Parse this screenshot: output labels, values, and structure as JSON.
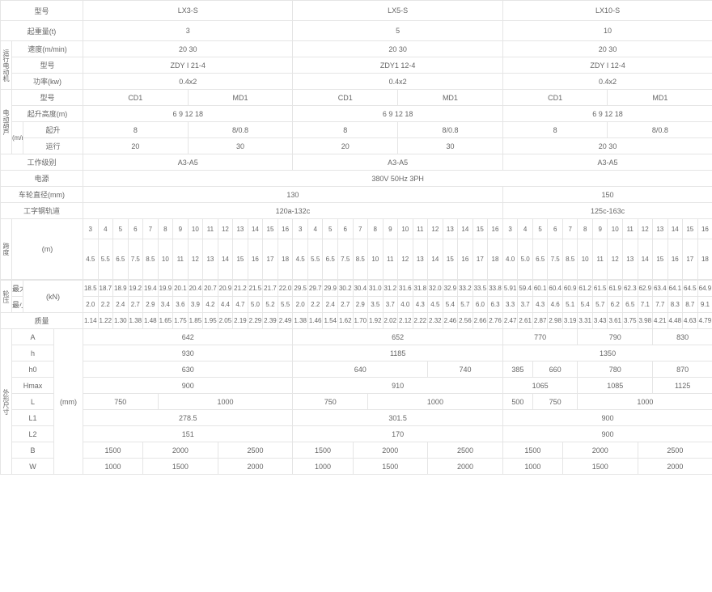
{
  "labels": {
    "model": "型号",
    "capacity": "起重量(t)",
    "speed": "速度(m/min)",
    "power": "功率(kw)",
    "liftHeight": "起升高度(m)",
    "lift": "起升",
    "travel": "运行",
    "workClass": "工作级别",
    "powerSupply": "电源",
    "wheelDia": "车轮直径(mm)",
    "ibeam": "工字钢轨道",
    "max": "最大",
    "min": "最小",
    "mass": "质量",
    "hoistGroup": "电动葫芦",
    "travelMotor": "运行电动机",
    "span": "跨度",
    "craneLen": "整机长度",
    "wheelPress": "轮压",
    "mUnit": "(m)",
    "kNUnit": "(kN)",
    "mmUnit": "(mm)",
    "mminUnit": "(m/min)",
    "dimGroup": "外形尺寸",
    "A": "A",
    "h": "h",
    "h0": "h0",
    "Hmax": "Hmax",
    "L": "L",
    "L1": "L1",
    "L2": "L2",
    "B": "B",
    "W": "W"
  },
  "models": [
    "LX3-S",
    "LX5-S",
    "LX10-S"
  ],
  "capacity": [
    "3",
    "5",
    "10"
  ],
  "travelSpeed": [
    "20   30",
    "20   30",
    "20   30"
  ],
  "motorModel": [
    "ZDY I  21-4",
    "ZDY1   12-4",
    "ZDY I  12-4"
  ],
  "motorPower": [
    "0.4x2",
    "0.4x2",
    "0.4x2"
  ],
  "hoistModel": [
    "CD1",
    "MD1",
    "CD1",
    "MD1",
    "CD1",
    "MD1"
  ],
  "liftHeight": [
    "6 9 12 18",
    "6 9 12 18",
    "6 9 12 18"
  ],
  "liftSpeed": [
    "8",
    "8/0.8",
    "8",
    "8/0.8",
    "8",
    "8/0.8"
  ],
  "travSpeed": [
    "20",
    "30",
    "20",
    "30",
    "20  30"
  ],
  "workClass": [
    "A3-A5",
    "A3-A5",
    "A3-A5"
  ],
  "powerSupply": "380V 50Hz 3PH",
  "wheelDia": [
    "130",
    "150"
  ],
  "ibeam": [
    "120a-132c",
    "125c-163c"
  ],
  "spanHdr": [
    "3",
    "4",
    "5",
    "6",
    "7",
    "8",
    "9",
    "10",
    "11",
    "12",
    "13",
    "14",
    "15",
    "16",
    "3",
    "4",
    "5",
    "6",
    "7",
    "8",
    "9",
    "10",
    "11",
    "12",
    "13",
    "14",
    "15",
    "16",
    "3",
    "4",
    "5",
    "6",
    "7",
    "8",
    "9",
    "10",
    "11",
    "12",
    "13",
    "14",
    "15",
    "16"
  ],
  "craneLen": [
    "4.5",
    "5.5",
    "6.5",
    "7.5",
    "8.5",
    "10",
    "11",
    "12",
    "13",
    "14",
    "15",
    "16",
    "17",
    "18",
    "4.5",
    "5.5",
    "6.5",
    "7.5",
    "8.5",
    "10",
    "11",
    "12",
    "13",
    "14",
    "15",
    "16",
    "17",
    "18",
    "4.0",
    "5.0",
    "6.5",
    "7.5",
    "8.5",
    "10",
    "11",
    "12",
    "13",
    "14",
    "15",
    "16",
    "17",
    "18"
  ],
  "wheelMax": [
    "18.5",
    "18.7",
    "18.9",
    "19.2",
    "19.4",
    "19.9",
    "20.1",
    "20.4",
    "20.7",
    "20.9",
    "21.2",
    "21.5",
    "21.7",
    "22.0",
    "29.5",
    "29.7",
    "29.9",
    "30.2",
    "30.4",
    "31.0",
    "31.2",
    "31.6",
    "31.8",
    "32.0",
    "32.9",
    "33.2",
    "33.5",
    "33.8",
    "5.91",
    "59.4",
    "60.1",
    "60.4",
    "60.9",
    "61.2",
    "61.5",
    "61.9",
    "62.3",
    "62.9",
    "63.4",
    "64.1",
    "64.5",
    "64.9"
  ],
  "wheelMin": [
    "2.0",
    "2.2",
    "2.4",
    "2.7",
    "2.9",
    "3.4",
    "3.6",
    "3.9",
    "4.2",
    "4.4",
    "4.7",
    "5.0",
    "5.2",
    "5.5",
    "2.0",
    "2.2",
    "2.4",
    "2.7",
    "2.9",
    "3.5",
    "3.7",
    "4.0",
    "4.3",
    "4.5",
    "5.4",
    "5.7",
    "6.0",
    "6.3",
    "3.3",
    "3.7",
    "4.3",
    "4.6",
    "5.1",
    "5.4",
    "5.7",
    "6.2",
    "6.5",
    "7.1",
    "7.7",
    "8.3",
    "8.7",
    "9.1"
  ],
  "mass": [
    "1.14",
    "1.22",
    "1.30",
    "1.38",
    "1.48",
    "1.65",
    "1.75",
    "1.85",
    "1.95",
    "2.05",
    "2.19",
    "2.29",
    "2.39",
    "2.49",
    "1.38",
    "1.46",
    "1.54",
    "1.62",
    "1.70",
    "1.92",
    "2.02",
    "2.12",
    "2.22",
    "2.32",
    "2.46",
    "2.56",
    "2.66",
    "2.76",
    "2.47",
    "2.61",
    "2.87",
    "2.98",
    "3.19",
    "3.31",
    "3.43",
    "3.61",
    "3.75",
    "3.98",
    "4.21",
    "4.48",
    "4.63",
    "4.79"
  ],
  "dimA": [
    "642",
    "652",
    "770",
    "790",
    "830"
  ],
  "dimh": [
    "930",
    "1185",
    "1350"
  ],
  "dimh0": [
    "630",
    "640",
    "740",
    "385",
    "660",
    "780",
    "870"
  ],
  "dimHmax": [
    "900",
    "910",
    "1065",
    "1085",
    "1125"
  ],
  "dimL": [
    "750",
    "1000",
    "750",
    "1000",
    "500",
    "750",
    "1000"
  ],
  "dimL1": [
    "278.5",
    "301.5",
    "900"
  ],
  "dimL2": [
    "151",
    "170",
    "900"
  ],
  "dimB": [
    "1500",
    "2000",
    "2500",
    "1500",
    "2000",
    "2500",
    "1500",
    "2000",
    "2500"
  ],
  "dimW": [
    "1000",
    "1500",
    "2000",
    "1000",
    "1500",
    "2000",
    "1000",
    "1500",
    "2000"
  ]
}
